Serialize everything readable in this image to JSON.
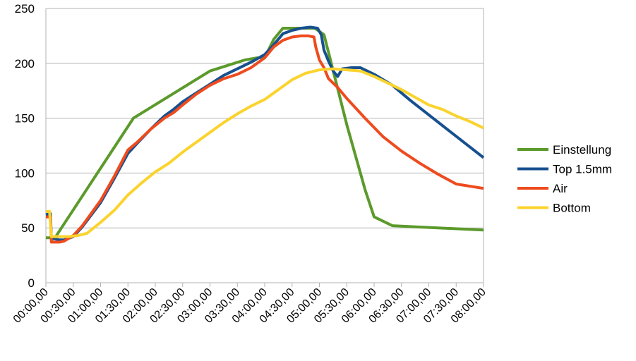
{
  "chart_data": {
    "type": "line",
    "x_label_format": "HH:MM,00",
    "x_ticks": [
      "00:00,00",
      "00:30,00",
      "01:00,00",
      "01:30,00",
      "02:00,00",
      "02:30,00",
      "03:00,00",
      "03:30,00",
      "04:00,00",
      "04:30,00",
      "05:00,00",
      "05:30,00",
      "06:00,00",
      "06:30,00",
      "07:00,00",
      "07:30,00",
      "08:00,00"
    ],
    "xlim": [
      0,
      480
    ],
    "x_unit": "minutes",
    "ylim": [
      0,
      250
    ],
    "y_ticks": [
      "0",
      "50",
      "100",
      "150",
      "200",
      "250"
    ],
    "grid": "horizontal",
    "legend_position": "right",
    "series": [
      {
        "name": "Einstellung",
        "color": "#5b9a2b",
        "x": [
          0,
          10,
          96,
          180,
          218,
          232,
          240,
          250,
          260,
          280,
          295,
          305,
          310,
          330,
          350,
          360,
          380,
          480
        ],
        "y": [
          41,
          41,
          150,
          193,
          203,
          205,
          205,
          222,
          232,
          232,
          232,
          226,
          210,
          144,
          85,
          60,
          52,
          48
        ]
      },
      {
        "name": "Top 1.5mm",
        "color": "#17508f",
        "x": [
          0,
          5,
          6,
          8,
          10,
          15,
          20,
          30,
          40,
          60,
          75,
          90,
          100,
          115,
          130,
          140,
          150,
          165,
          180,
          195,
          210,
          225,
          240,
          250,
          260,
          270,
          280,
          290,
          298,
          302,
          305,
          310,
          315,
          320,
          325,
          335,
          345,
          360,
          380,
          400,
          420,
          440,
          460,
          480
        ],
        "y": [
          62,
          63,
          40,
          40,
          40,
          39,
          39,
          42,
          51,
          73,
          95,
          118,
          127,
          140,
          152,
          158,
          165,
          173,
          181,
          189,
          195,
          201,
          208,
          217,
          227,
          230,
          232,
          233,
          232,
          226,
          212,
          202,
          193,
          188,
          195,
          196,
          196,
          190,
          180,
          166,
          153,
          140,
          127,
          114
        ]
      },
      {
        "name": "Air",
        "color": "#ee4b1e",
        "x": [
          0,
          5,
          6,
          8,
          10,
          15,
          20,
          30,
          40,
          60,
          75,
          90,
          100,
          115,
          130,
          140,
          150,
          165,
          180,
          195,
          210,
          225,
          240,
          250,
          260,
          270,
          280,
          288,
          294,
          296,
          300,
          305,
          310,
          320,
          330,
          350,
          370,
          390,
          410,
          430,
          450,
          480
        ],
        "y": [
          60,
          60,
          37,
          37,
          37,
          37,
          38,
          43,
          52,
          75,
          97,
          121,
          128,
          140,
          150,
          155,
          162,
          172,
          180,
          186,
          190,
          196,
          205,
          215,
          221,
          224,
          225,
          225,
          224,
          215,
          203,
          196,
          186,
          178,
          168,
          150,
          133,
          120,
          109,
          99,
          90,
          86
        ]
      },
      {
        "name": "Bottom",
        "color": "#fbd32e",
        "x": [
          0,
          4,
          6,
          8,
          15,
          25,
          35,
          45,
          60,
          75,
          90,
          105,
          120,
          135,
          150,
          165,
          180,
          195,
          210,
          225,
          240,
          255,
          270,
          285,
          300,
          315,
          330,
          345,
          360,
          375,
          390,
          405,
          420,
          435,
          450,
          465,
          480
        ],
        "y": [
          65,
          65,
          42,
          42,
          42,
          42,
          43,
          45,
          55,
          66,
          80,
          91,
          101,
          109,
          119,
          128,
          137,
          146,
          154,
          161,
          167,
          176,
          185,
          191,
          194,
          195,
          194,
          193,
          188,
          182,
          176,
          169,
          162,
          158,
          152,
          147,
          141
        ]
      }
    ]
  }
}
